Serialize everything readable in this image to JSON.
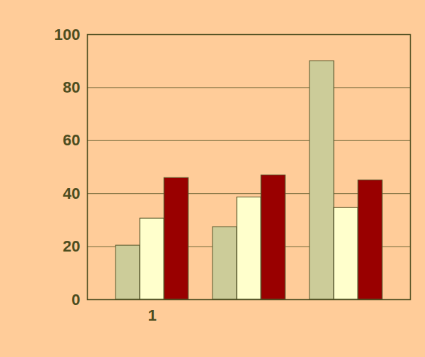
{
  "chart_data": {
    "type": "bar",
    "categories": [
      "1",
      null,
      null
    ],
    "series": [
      {
        "color": "#CCCC99",
        "values": [
          20.4,
          27.4,
          90
        ]
      },
      {
        "color": "#FFFFCC",
        "values": [
          30.6,
          38.6,
          34.6
        ]
      },
      {
        "color": "#990000",
        "values": [
          45.9,
          46.9,
          45
        ]
      }
    ],
    "ylim": [
      0,
      100
    ],
    "yticks": [
      0,
      20,
      40,
      60,
      80,
      100
    ],
    "grid": true
  }
}
